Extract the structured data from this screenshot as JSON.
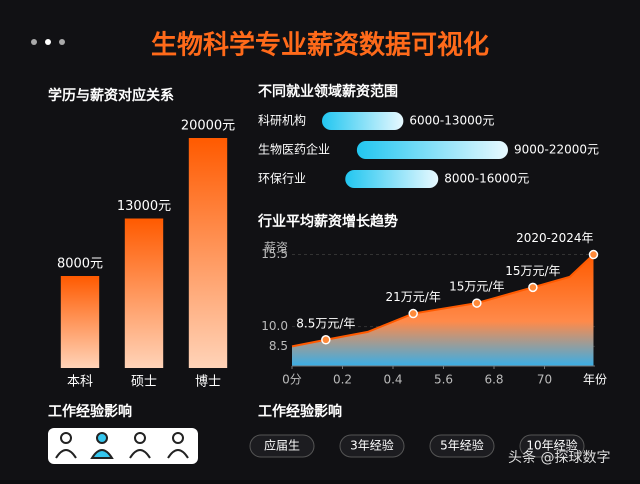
{
  "header": {
    "title": "生物科学专业薪资数据可视化"
  },
  "chart_data": [
    {
      "type": "bar",
      "title": "学历与薪资对应关系",
      "categories": [
        "本科",
        "硕士",
        "博士"
      ],
      "values": [
        8000,
        13000,
        20000
      ],
      "value_labels": [
        "8000元",
        "13000元",
        "20000元"
      ],
      "color": "#ff5a00"
    },
    {
      "type": "range",
      "title": "不同就业领域薪资范围",
      "categories": [
        "科研机构",
        "生物医药企业",
        "环保行业"
      ],
      "low": [
        6000,
        9000,
        8000
      ],
      "high": [
        13000,
        22000,
        16000
      ],
      "value_labels": [
        "6000-13000元",
        "9000-22000元",
        "8000-16000元"
      ],
      "color": "#34c8f0"
    },
    {
      "type": "area",
      "title": "行业平均薪资增长趋势",
      "y_label": "薪资",
      "x_label": "年份",
      "x": [
        0,
        0.67,
        1.5,
        2.4,
        3.66,
        4.77,
        5.5,
        5.97
      ],
      "values": [
        8.5,
        9.0,
        9.6,
        11.0,
        11.8,
        13.0,
        13.8,
        15.5
      ],
      "xlim": [
        0,
        6
      ],
      "ylim": [
        7,
        16
      ],
      "xticks": [
        {
          "value": 0,
          "label": "0分"
        },
        {
          "value": 1,
          "label": "0.2"
        },
        {
          "value": 2,
          "label": "0.4"
        },
        {
          "value": 3,
          "label": "5.6"
        },
        {
          "value": 4,
          "label": "6.8"
        },
        {
          "value": 5,
          "label": "70"
        }
      ],
      "yticks": [
        8.5,
        {
          "value": 10,
          "label": "10.0"
        },
        15.5
      ],
      "annotations": [
        "8.5万元/年",
        "21万元/年",
        "15万元/年",
        "15万元/年",
        "2020-2024年"
      ],
      "color": "#ff5a00"
    }
  ],
  "experience_left": {
    "title": "工作经验影响"
  },
  "experience_right": {
    "title": "工作经验影响",
    "options": [
      "应届生",
      "3年经验",
      "5年经验",
      "10年经验"
    ]
  },
  "watermark": "头条 @探球数字"
}
